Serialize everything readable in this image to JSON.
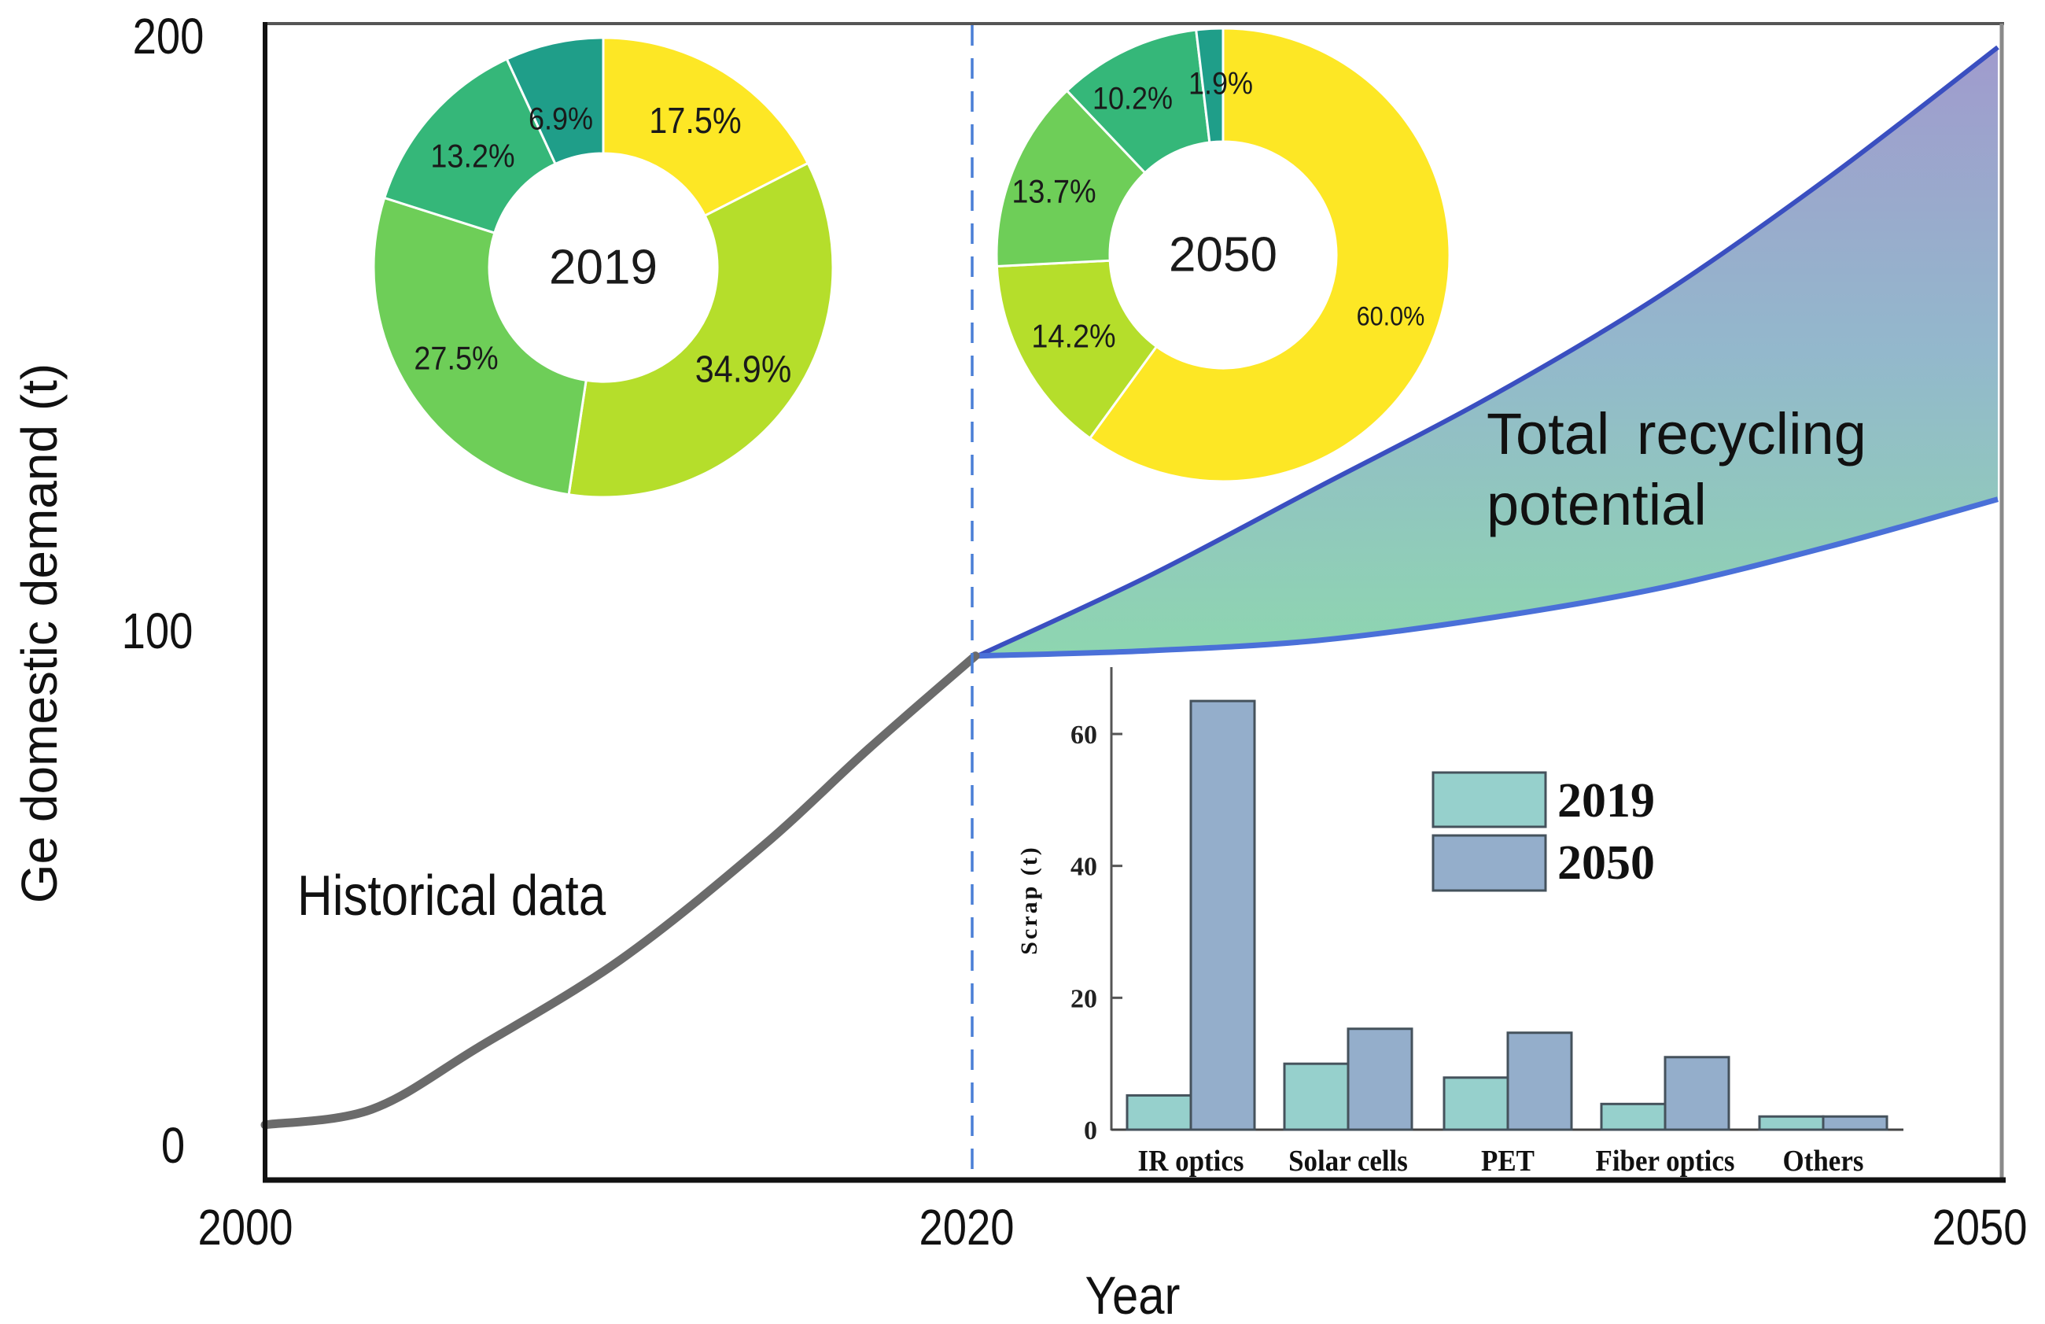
{
  "chart_data": [
    {
      "type": "area",
      "title": "",
      "xlabel": "Year",
      "ylabel": "Ge domestic demand (t)",
      "xlim": [
        2000,
        2050
      ],
      "ylim": [
        0,
        200
      ],
      "x_ticks": [
        "2000",
        "2020",
        "2050"
      ],
      "y_ticks": [
        "0",
        "100",
        "200"
      ],
      "divider_year": 2020,
      "historical": {
        "name": "Historical data",
        "x": [
          2000,
          2003,
          2006,
          2010,
          2014,
          2017,
          2020
        ],
        "y": [
          4,
          7,
          19,
          36,
          58,
          77,
          95
        ]
      },
      "projection": {
        "name": "Total recycling potential",
        "x": [
          2020,
          2025,
          2030,
          2035,
          2040,
          2045,
          2050
        ],
        "upper": [
          95,
          109,
          124,
          139,
          156,
          176,
          198
        ],
        "lower": [
          95,
          96,
          98,
          102,
          107,
          114,
          122
        ]
      },
      "annotations": [
        "Historical data",
        "Total recycling",
        "potential"
      ],
      "colors": {
        "historical": "#6b6b6b",
        "boundary": "#3a57c4",
        "fill_top": "#9a9ccb",
        "fill_bottom": "#8fd6b2",
        "divider": "#4a7fd6"
      }
    },
    {
      "type": "pie",
      "variant": "donut",
      "center_label": "2019",
      "values": [
        17.5,
        34.9,
        27.5,
        13.2,
        6.9
      ],
      "labels": [
        "17.5%",
        "34.9%",
        "27.5%",
        "13.2%",
        "6.9%"
      ],
      "colors": [
        "#fde725",
        "#b5de2b",
        "#6ece58",
        "#35b779",
        "#1f9e89"
      ]
    },
    {
      "type": "pie",
      "variant": "donut",
      "center_label": "2050",
      "values": [
        60.0,
        14.2,
        13.7,
        10.2,
        1.9
      ],
      "labels": [
        "60.0%",
        "14.2%",
        "13.7%",
        "10.2%",
        "1.9%"
      ],
      "colors": [
        "#fde725",
        "#b5de2b",
        "#6ece58",
        "#35b779",
        "#1f9e89"
      ]
    },
    {
      "type": "bar",
      "title": "",
      "xlabel": "",
      "ylabel": "Scrap (t)",
      "ylim": [
        0,
        70
      ],
      "y_ticks": [
        "0",
        "20",
        "40",
        "60"
      ],
      "categories": [
        "IR optics",
        "Solar cells",
        "PET",
        "Fiber optics",
        "Others"
      ],
      "series": [
        {
          "name": "2019",
          "values": [
            5.2,
            10.0,
            7.9,
            3.9,
            2.0
          ],
          "color": "#96d0cc"
        },
        {
          "name": "2050",
          "values": [
            65.0,
            15.3,
            14.7,
            11.0,
            2.0
          ],
          "color": "#94aecb"
        }
      ],
      "legend": "top-right"
    }
  ]
}
